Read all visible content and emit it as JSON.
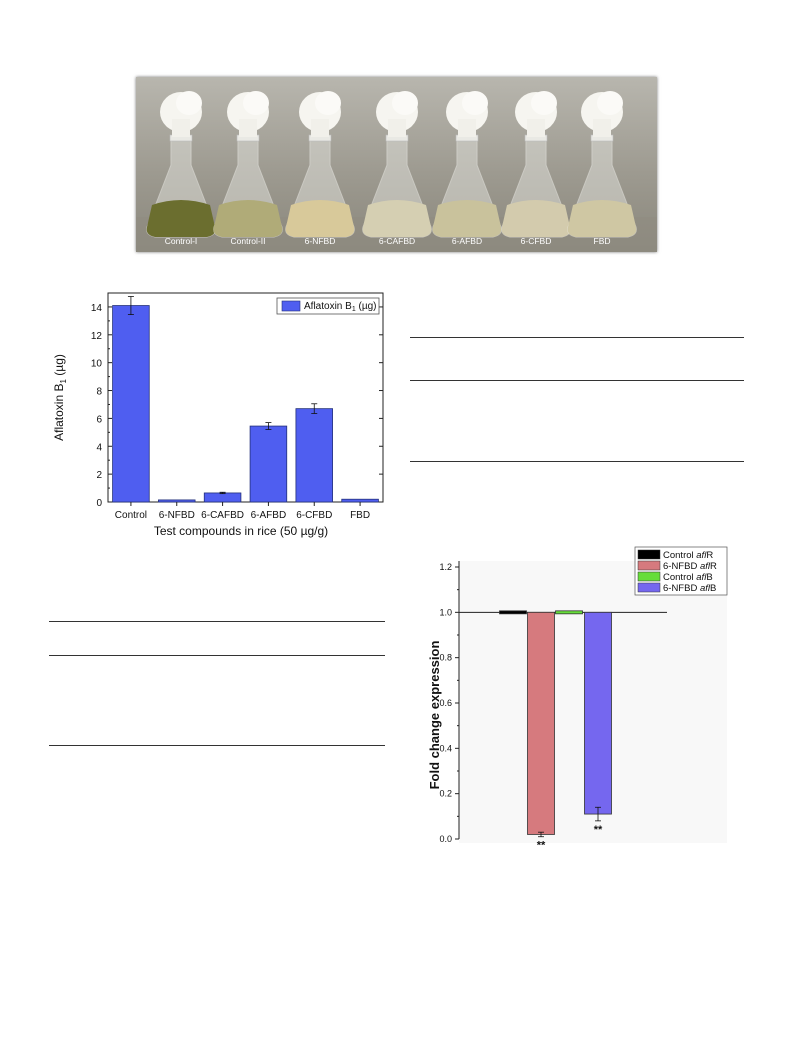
{
  "photo": {
    "labels": [
      "Control-I",
      "Control-II",
      "6-NFBD",
      "6-CAFBD",
      "6-AFBD",
      "6-CFBD",
      "FBD"
    ],
    "contents_colors": [
      "#6b6e2f",
      "#b0ab78",
      "#d8c99a",
      "#d5cfb2",
      "#c9c29c",
      "#d3cbad",
      "#cfc7a3"
    ]
  },
  "chart_data": [
    {
      "type": "bar",
      "categories": [
        "Control",
        "6-NFBD",
        "6-CAFBD",
        "6-AFBD",
        "6-CFBD",
        "FBD"
      ],
      "series": [
        {
          "name": "Aflatoxin B1 (µg)",
          "values": [
            14.1,
            0.15,
            0.65,
            5.45,
            6.7,
            0.2
          ],
          "errors": [
            0.65,
            0.0,
            0.05,
            0.25,
            0.35,
            0.0
          ]
        }
      ],
      "xlabel": "Test compounds in rice (50 µg/g)",
      "ylabel": "Aflatoxin B1 (µg)",
      "ylim": [
        0,
        15
      ],
      "yticks": [
        "0",
        "2",
        "4",
        "6",
        "8",
        "10",
        "12",
        "14"
      ],
      "legend": "top-right",
      "colors": [
        "#4f5ef0"
      ]
    },
    {
      "type": "bar",
      "categories": [
        "Control aflR",
        "6-NFBD aflR",
        "Control aflB",
        "6-NFBD aflB"
      ],
      "series": [
        {
          "name": "Control aflR",
          "value": 1.0,
          "error": 0.0,
          "color": "#000000"
        },
        {
          "name": "6-NFBD aflR",
          "value": 0.02,
          "error": 0.01,
          "color": "#d67a7e"
        },
        {
          "name": "Control aflB",
          "value": 1.0,
          "error": 0.0,
          "color": "#66dd3a"
        },
        {
          "name": "6-NFBD aflB",
          "value": 0.11,
          "error": 0.03,
          "color": "#7567ef"
        }
      ],
      "annotations": [
        "**",
        "**"
      ],
      "ylabel": "Fold change expression",
      "ylim": [
        0,
        1.2
      ],
      "yticks": [
        "0.0",
        "0.2",
        "0.4",
        "0.6",
        "0.8",
        "1.0",
        "1.2"
      ],
      "legend": "top-right"
    }
  ]
}
